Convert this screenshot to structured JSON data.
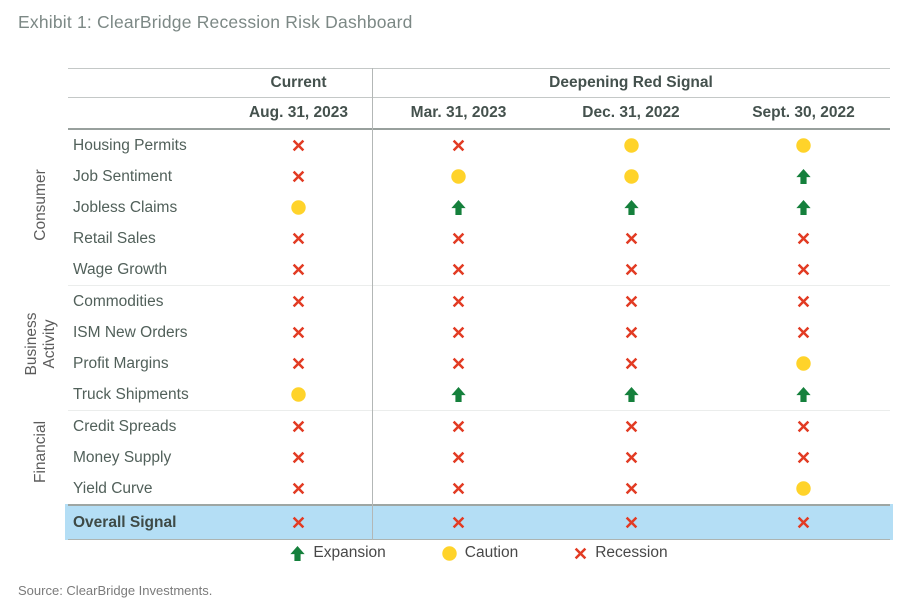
{
  "title": "Exhibit 1: ClearBridge Recession Risk Dashboard",
  "source": "Source: ClearBridge Investments.",
  "table": {
    "header": {
      "current": "Current",
      "deepening": "Deepening Red Signal"
    },
    "date_columns": [
      "Aug. 31, 2023",
      "Mar. 31, 2023",
      "Dec. 31, 2022",
      "Sept. 30, 2022"
    ],
    "groups": [
      {
        "name": "Consumer",
        "rows": [
          {
            "label": "Housing Permits",
            "signals": [
              "recession",
              "recession",
              "caution",
              "caution"
            ]
          },
          {
            "label": "Job Sentiment",
            "signals": [
              "recession",
              "caution",
              "caution",
              "expansion"
            ]
          },
          {
            "label": "Jobless Claims",
            "signals": [
              "caution",
              "expansion",
              "expansion",
              "expansion"
            ]
          },
          {
            "label": "Retail Sales",
            "signals": [
              "recession",
              "recession",
              "recession",
              "recession"
            ]
          },
          {
            "label": "Wage Growth",
            "signals": [
              "recession",
              "recession",
              "recession",
              "recession"
            ]
          }
        ]
      },
      {
        "name": "Business Activity",
        "rows": [
          {
            "label": "Commodities",
            "signals": [
              "recession",
              "recession",
              "recession",
              "recession"
            ]
          },
          {
            "label": "ISM New Orders",
            "signals": [
              "recession",
              "recession",
              "recession",
              "recession"
            ]
          },
          {
            "label": "Profit Margins",
            "signals": [
              "recession",
              "recession",
              "recession",
              "caution"
            ]
          },
          {
            "label": "Truck Shipments",
            "signals": [
              "caution",
              "expansion",
              "expansion",
              "expansion"
            ]
          }
        ]
      },
      {
        "name": "Financial",
        "rows": [
          {
            "label": "Credit Spreads",
            "signals": [
              "recession",
              "recession",
              "recession",
              "recession"
            ]
          },
          {
            "label": "Money Supply",
            "signals": [
              "recession",
              "recession",
              "recession",
              "recession"
            ]
          },
          {
            "label": "Yield Curve",
            "signals": [
              "recession",
              "recession",
              "recession",
              "caution"
            ]
          }
        ]
      }
    ],
    "overall": {
      "label": "Overall Signal",
      "signals": [
        "recession",
        "recession",
        "recession",
        "recession"
      ]
    }
  },
  "legend": {
    "items": [
      {
        "symbol": "expansion",
        "label": "Expansion"
      },
      {
        "symbol": "caution",
        "label": "Caution"
      },
      {
        "symbol": "recession",
        "label": "Recession"
      }
    ]
  },
  "colors": {
    "expansion_green": "#15803C",
    "caution_yellow": "#FFD32A",
    "recession_red": "#E23B23",
    "overall_row_blue": "#B4DEF5"
  }
}
